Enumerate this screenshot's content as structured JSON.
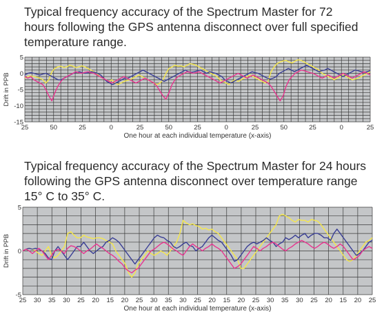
{
  "titles": {
    "top": "Typical frequency accuracy of the Spectrum Master for 72 hours following the GPS antenna disconnect over full specified temperature range.",
    "bottom": "Typical frequency accuracy of the Spectrum Master for 24 hours following the GPS antenna disconnect over temperature range 15° C to 35° C."
  },
  "chart_data": [
    {
      "type": "line",
      "ylabel": "Drift in PPB",
      "xlabel": "One hour at each individual temperature (x-axis)",
      "ylim": [
        -15,
        5
      ],
      "yticks": [
        5,
        0,
        -5,
        -10,
        -15
      ],
      "xtick_labels": [
        "25",
        "50",
        "25",
        "0",
        "25",
        "50",
        "25",
        "0",
        "25",
        "50",
        "25",
        "0",
        "25"
      ],
      "grid": true,
      "colors": {
        "plot_bg": "#c4c6c8",
        "grid": "#3a3a3a"
      },
      "series": [
        {
          "color": "#f6e84a",
          "values": [
            -1.5,
            -1,
            -0.8,
            -1,
            -1.2,
            -1.5,
            -2,
            -3,
            -2,
            0.5,
            1.5,
            2,
            2.2,
            1.8,
            2,
            2.5,
            2.2,
            1.8,
            2,
            2.3,
            2,
            1.5,
            1,
            0.5,
            0,
            -1,
            -1.5,
            -2,
            -2.5,
            -2,
            -3,
            -3.5,
            -3,
            -2.5,
            -2.2,
            -2,
            -1.5,
            -1,
            -0.5,
            -1,
            -1.5,
            -2,
            -2.5,
            -3,
            -3.5,
            -3,
            -2,
            0,
            1.5,
            2,
            2.5,
            2.2,
            2.3,
            2,
            2.5,
            3,
            2.8,
            2.5,
            2,
            1.5,
            1,
            0.5,
            0,
            -0.5,
            -1,
            -2,
            -2.5,
            -3,
            -3.5,
            -2.5,
            -2,
            -2.5,
            -2,
            -1.5,
            -1,
            -0.5,
            -1,
            -1.5,
            -2,
            -2.5,
            -3,
            -2.5,
            0.5,
            2,
            3,
            3.5,
            3.8,
            4,
            3.5,
            3.2,
            3.8,
            4.2,
            4,
            3.5,
            3,
            2.5,
            2,
            1.5,
            1,
            0,
            -0.5,
            -1,
            -1.5,
            -2,
            -1.5,
            -1,
            -0.5,
            -1,
            -1.5,
            -2,
            -1.8,
            -1.5,
            -1,
            -0.5,
            0,
            0.5
          ]
        },
        {
          "color": "#3a3f95",
          "values": [
            -0.5,
            0,
            0.2,
            0,
            -0.3,
            -0.5,
            -0.2,
            0,
            -0.5,
            -1,
            -1.5,
            -2,
            -2,
            -1.5,
            -1,
            -0.5,
            0,
            0.3,
            0.5,
            0.2,
            0,
            0.2,
            0.5,
            0.3,
            0,
            -0.5,
            -1.5,
            -2.5,
            -3,
            -3.5,
            -3,
            -2.5,
            -2,
            -1.5,
            -1.5,
            -1,
            -0.5,
            0,
            0.5,
            1,
            0.5,
            0,
            -0.5,
            -1,
            -1.5,
            -2,
            -2.5,
            -2,
            -1.5,
            -1,
            -0.5,
            0,
            0.5,
            1,
            0.5,
            0.3,
            0.5,
            0.8,
            1,
            0.5,
            0,
            0.5,
            0.2,
            0,
            -0.5,
            -1,
            -2,
            -2.5,
            -3,
            -2.5,
            -2,
            -1.5,
            -1,
            -0.5,
            0,
            0.5,
            0.2,
            0,
            -0.5,
            -1,
            -1.5,
            -1.8,
            -1.5,
            -1,
            0,
            0.5,
            1,
            1.5,
            1,
            0.5,
            1,
            1.5,
            2,
            2.5,
            2,
            1.5,
            1,
            0.5,
            0.8,
            1,
            1.5,
            1,
            0.5,
            0,
            -0.5,
            -1,
            -0.5,
            0,
            0.5,
            1,
            0.8,
            0.5,
            0.3,
            0.5,
            0.8
          ]
        },
        {
          "color": "#e8358f",
          "values": [
            -1,
            -1.5,
            -1,
            -2,
            -2.5,
            -3,
            -3.5,
            -5,
            -7,
            -8.5,
            -6,
            -4,
            -2.5,
            -1.5,
            -1,
            -0.5,
            0,
            0.5,
            0.2,
            0,
            0.3,
            0.5,
            0.2,
            0,
            -0.5,
            -1,
            -1.5,
            -2,
            -2.5,
            -3,
            -2.5,
            -2,
            -1.5,
            -1,
            -1.5,
            -2,
            -2.5,
            -3,
            -2.5,
            -2,
            -1.5,
            -2,
            -2.5,
            -3,
            -4,
            -5.5,
            -7,
            -8,
            -6,
            -3.5,
            -2,
            -1,
            -0.5,
            0,
            0.5,
            0.3,
            0,
            0.2,
            0.5,
            0,
            -0.5,
            -1,
            -1.5,
            -2,
            -2.5,
            -3,
            -2.5,
            -2,
            -1.5,
            -1,
            -0.5,
            0,
            -0.5,
            -1,
            -1.5,
            -1,
            -0.5,
            -1,
            -1.5,
            -2,
            -2.5,
            -3,
            -4,
            -5.5,
            -7,
            -8.5,
            -7,
            -4,
            -2,
            -1,
            0,
            0.5,
            1,
            0.8,
            0.5,
            0.2,
            0,
            -0.5,
            -1,
            -1.5,
            -1,
            -0.5,
            -1,
            -1.5,
            -1,
            -0.5,
            0,
            -0.5,
            -1,
            -1.5,
            -1,
            -0.5,
            0,
            0.5,
            0,
            -0.5
          ]
        }
      ]
    },
    {
      "type": "line",
      "ylabel": "Drift in PPB",
      "xlabel": "One hour at each individual temperature (x-axis)",
      "ylim": [
        -5,
        5
      ],
      "yticks": [
        5,
        0,
        -5
      ],
      "xtick_labels": [
        "25",
        "30",
        "35",
        "30",
        "25",
        "20",
        "15",
        "20",
        "25",
        "30",
        "35",
        "30",
        "25",
        "20",
        "15",
        "20",
        "25",
        "30",
        "35",
        "30",
        "25",
        "20",
        "15",
        "20",
        "25"
      ],
      "grid": true,
      "colors": {
        "plot_bg": "#c4c6c8",
        "grid": "#3a3a3a"
      },
      "series": [
        {
          "color": "#f6e84a",
          "values": [
            0,
            0.2,
            0.3,
            0.2,
            0,
            -0.3,
            -0.5,
            0,
            0.5,
            -0.5,
            -0.8,
            -0.5,
            0,
            0.5,
            2,
            2.2,
            1.8,
            1.5,
            1.5,
            1.8,
            1.6,
            1.5,
            1.4,
            1.5,
            1.5,
            1.4,
            1.2,
            1,
            0.8,
            0,
            -0.5,
            -1,
            -1.5,
            -2.5,
            -3,
            -2.5,
            -1.5,
            -1,
            -0.5,
            0,
            -0.3,
            -0.5,
            -0.3,
            0,
            -0.2,
            -0.5,
            0,
            0.5,
            1,
            2,
            3.5,
            3.2,
            3,
            3.1,
            2.9,
            2.8,
            2.5,
            2.6,
            2.4,
            2.5,
            2.2,
            2.0,
            1.5,
            1,
            0.5,
            0,
            -0.5,
            -1,
            -2,
            -2,
            -1.5,
            -1,
            -0.5,
            0,
            0.5,
            1,
            1.5,
            2,
            2.5,
            3,
            4,
            4.2,
            4,
            3.8,
            3.5,
            3.3,
            3.6,
            3.5,
            3.5,
            3.3,
            3.6,
            3.5,
            3.4,
            3,
            2.5,
            2,
            1.5,
            1,
            0.5,
            0,
            -0.5,
            -1,
            -1.2,
            -1,
            -0.5,
            0,
            0.5,
            1,
            1.2,
            1.5
          ]
        },
        {
          "color": "#3a3f95",
          "values": [
            0,
            0.2,
            0.3,
            0.2,
            0.3,
            0.2,
            0,
            -0.3,
            -0.8,
            -1,
            0,
            0.5,
            0,
            -0.5,
            -1,
            -0.5,
            0,
            0.5,
            0.5,
            1,
            0.5,
            0,
            -0.3,
            0,
            0.3,
            0.5,
            1,
            1.2,
            1.5,
            1.3,
            1,
            0.5,
            0,
            -0.5,
            -1,
            -1.5,
            -1,
            -0.5,
            0,
            0.5,
            1,
            1.5,
            1.8,
            1.6,
            1.5,
            1.2,
            1,
            0.5,
            0.3,
            0.5,
            0.8,
            1,
            0.6,
            0.5,
            0,
            0.3,
            0.5,
            1,
            1.5,
            1.8,
            1.5,
            1.2,
            1,
            0.5,
            0,
            -0.5,
            -1.2,
            -1,
            -0.5,
            0,
            0.5,
            0.8,
            1,
            0.8,
            1,
            1.2,
            1.5,
            1.2,
            1,
            0.5,
            0.8,
            1,
            1.5,
            1.3,
            1.5,
            1.8,
            1.5,
            1.8,
            2,
            1.5,
            1.8,
            2,
            2,
            1.8,
            1.5,
            1.5,
            1.2,
            2,
            2.5,
            2,
            1.5,
            1,
            0.5,
            0,
            -0.5,
            -0.3,
            0,
            0.5,
            1,
            1.2
          ]
        },
        {
          "color": "#e8358f",
          "values": [
            0,
            0.2,
            0,
            -0.3,
            0,
            0.3,
            0,
            -0.5,
            -1,
            -0.5,
            0,
            0.2,
            0,
            -0.3,
            0.3,
            0.6,
            0.5,
            0.3,
            0,
            -0.3,
            0,
            0.2,
            0.5,
            0.8,
            0.5,
            0.3,
            0,
            -0.3,
            -0.5,
            -0.8,
            -1.2,
            -1.5,
            -2,
            -2.3,
            -2.5,
            -2.2,
            -2,
            -1.5,
            -1,
            -0.5,
            0,
            0.2,
            0.5,
            0.8,
            1,
            0.8,
            0.5,
            0.2,
            0,
            -0.3,
            -0.5,
            0,
            0.5,
            0.8,
            0.5,
            0.3,
            0,
            0.3,
            0.5,
            0.8,
            0.5,
            0.3,
            0,
            -0.5,
            -1,
            -1.5,
            -2,
            -1.8,
            -1.5,
            -1,
            -0.5,
            0,
            0.5,
            0.3,
            0,
            0.3,
            0.5,
            0.8,
            1,
            0.8,
            0.5,
            0.2,
            0,
            0.3,
            0.5,
            0.8,
            1,
            1.2,
            1,
            0.8,
            0.5,
            0.3,
            0.5,
            0.8,
            1,
            0.8,
            0.5,
            0.3,
            0.5,
            0.8,
            0.5,
            0,
            -0.5,
            -1,
            -0.8,
            -0.5,
            0,
            0.3,
            0.5,
            0.3
          ]
        }
      ]
    }
  ]
}
